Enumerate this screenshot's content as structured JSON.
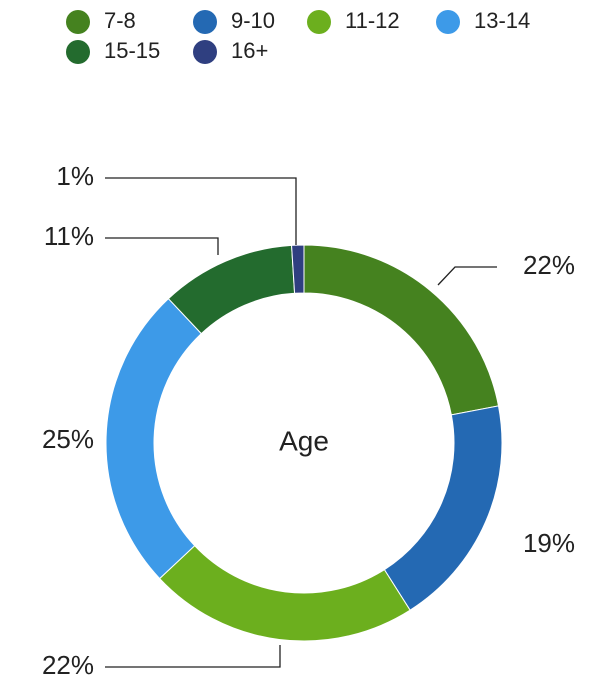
{
  "chart_data": {
    "type": "donut",
    "title": "Age",
    "categories": [
      "7-8",
      "9-10",
      "11-12",
      "13-14",
      "15-15",
      "16+"
    ],
    "values": [
      22,
      19,
      22,
      25,
      11,
      1
    ],
    "value_labels": [
      "22%",
      "19%",
      "22%",
      "25%",
      "11%",
      "1%"
    ],
    "colors": [
      "#45821f",
      "#2469b3",
      "#6caf1e",
      "#3d9ae8",
      "#236b2e",
      "#2f3f80"
    ],
    "legend": "top"
  }
}
